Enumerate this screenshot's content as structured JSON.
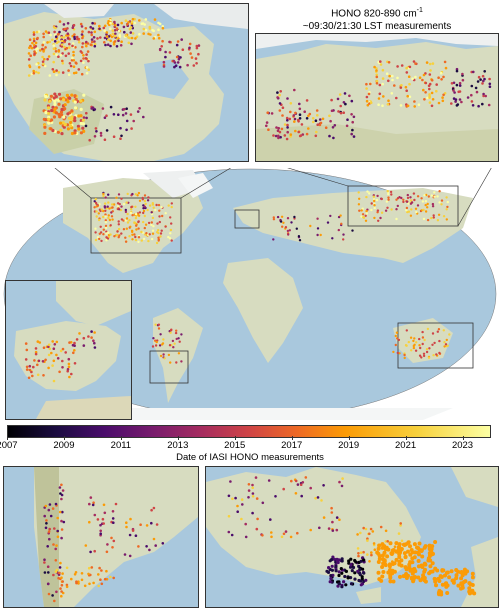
{
  "title": {
    "line1": "HONO 820-890 cm",
    "line1_sup": "-1",
    "line2": "~09:30/21:30 LST measurements"
  },
  "colorbar": {
    "label": "Date of IASI HONO measurements",
    "ticks": [
      "2007",
      "2009",
      "2011",
      "2013",
      "2015",
      "2017",
      "2019",
      "2021",
      "2023"
    ],
    "colormap": "inferno",
    "range": [
      2007,
      2024
    ]
  },
  "colors": {
    "ocean": "#a9c8dd",
    "land": "#dfe0c8",
    "ice": "#f2f4f6",
    "frame": "#333333"
  },
  "panels": [
    "North America",
    "Siberia",
    "World",
    "Iberia",
    "South America",
    "Australia"
  ]
}
